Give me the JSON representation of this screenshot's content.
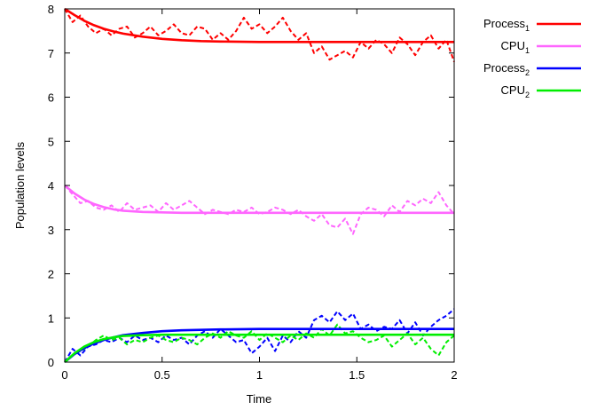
{
  "chart_data": {
    "type": "line",
    "xlabel": "Time",
    "ylabel": "Population levels",
    "xlim": [
      0,
      2
    ],
    "ylim": [
      0,
      8
    ],
    "x_ticks": [
      "0",
      "0.5",
      "1",
      "1.5",
      "2"
    ],
    "y_ticks": [
      "0",
      "1",
      "2",
      "3",
      "4",
      "5",
      "6",
      "7",
      "8"
    ],
    "grid": false,
    "legend_position": "top-right outside",
    "series": [
      {
        "name": "Process",
        "name_subscript": "1",
        "color": "#ff0000",
        "style": "solid",
        "x": [
          0,
          0.05,
          0.1,
          0.15,
          0.2,
          0.25,
          0.3,
          0.4,
          0.5,
          0.6,
          0.7,
          0.8,
          1.0,
          1.2,
          1.5,
          1.8,
          2.0
        ],
        "y": [
          8.0,
          7.86,
          7.73,
          7.63,
          7.55,
          7.49,
          7.44,
          7.37,
          7.32,
          7.29,
          7.27,
          7.26,
          7.25,
          7.25,
          7.25,
          7.25,
          7.25
        ]
      },
      {
        "name": "CPU",
        "name_subscript": "1",
        "color": "#ff66ff",
        "style": "solid",
        "x": [
          0,
          0.05,
          0.1,
          0.15,
          0.2,
          0.25,
          0.3,
          0.4,
          0.5,
          0.6,
          0.7,
          0.8,
          1.0,
          1.2,
          1.5,
          1.8,
          2.0
        ],
        "y": [
          4.0,
          3.82,
          3.68,
          3.58,
          3.51,
          3.46,
          3.43,
          3.4,
          3.39,
          3.38,
          3.38,
          3.38,
          3.38,
          3.38,
          3.38,
          3.38,
          3.38
        ]
      },
      {
        "name": "Process",
        "name_subscript": "2",
        "color": "#0000ff",
        "style": "solid",
        "x": [
          0,
          0.05,
          0.1,
          0.15,
          0.2,
          0.25,
          0.3,
          0.4,
          0.5,
          0.6,
          0.7,
          0.8,
          1.0,
          1.2,
          1.5,
          1.8,
          2.0
        ],
        "y": [
          0.0,
          0.18,
          0.32,
          0.42,
          0.5,
          0.56,
          0.61,
          0.66,
          0.7,
          0.72,
          0.73,
          0.74,
          0.75,
          0.75,
          0.75,
          0.75,
          0.75
        ]
      },
      {
        "name": "CPU",
        "name_subscript": "2",
        "color": "#00ee00",
        "style": "solid",
        "x": [
          0,
          0.05,
          0.1,
          0.15,
          0.2,
          0.25,
          0.3,
          0.4,
          0.5,
          0.6,
          0.7,
          0.8,
          1.0,
          1.2,
          1.5,
          1.8,
          2.0
        ],
        "y": [
          0.0,
          0.2,
          0.35,
          0.45,
          0.52,
          0.56,
          0.59,
          0.61,
          0.62,
          0.62,
          0.62,
          0.62,
          0.62,
          0.62,
          0.62,
          0.62,
          0.62
        ]
      },
      {
        "name": "",
        "color": "#ff0000",
        "style": "dashed",
        "x": [
          0,
          0.04,
          0.08,
          0.12,
          0.16,
          0.2,
          0.24,
          0.28,
          0.32,
          0.36,
          0.4,
          0.44,
          0.48,
          0.52,
          0.56,
          0.6,
          0.64,
          0.68,
          0.72,
          0.76,
          0.8,
          0.84,
          0.88,
          0.92,
          0.96,
          1.0,
          1.04,
          1.08,
          1.12,
          1.16,
          1.2,
          1.24,
          1.28,
          1.32,
          1.36,
          1.4,
          1.44,
          1.48,
          1.52,
          1.56,
          1.6,
          1.64,
          1.68,
          1.72,
          1.76,
          1.8,
          1.84,
          1.88,
          1.92,
          1.96,
          2.0
        ],
        "y": [
          8.0,
          7.7,
          7.85,
          7.6,
          7.45,
          7.55,
          7.4,
          7.55,
          7.6,
          7.35,
          7.45,
          7.6,
          7.4,
          7.5,
          7.65,
          7.45,
          7.4,
          7.6,
          7.55,
          7.3,
          7.45,
          7.3,
          7.5,
          7.8,
          7.55,
          7.65,
          7.45,
          7.6,
          7.8,
          7.5,
          7.3,
          7.45,
          7.0,
          7.15,
          6.85,
          6.95,
          7.05,
          6.9,
          7.25,
          7.1,
          7.3,
          7.2,
          7.0,
          7.35,
          7.2,
          6.95,
          7.25,
          7.4,
          7.1,
          7.3,
          6.8
        ]
      },
      {
        "name": "",
        "color": "#ff66ff",
        "style": "dashed",
        "x": [
          0,
          0.04,
          0.08,
          0.12,
          0.16,
          0.2,
          0.24,
          0.28,
          0.32,
          0.36,
          0.4,
          0.44,
          0.48,
          0.52,
          0.56,
          0.6,
          0.64,
          0.68,
          0.72,
          0.76,
          0.8,
          0.84,
          0.88,
          0.92,
          0.96,
          1.0,
          1.04,
          1.08,
          1.12,
          1.16,
          1.2,
          1.24,
          1.28,
          1.32,
          1.36,
          1.4,
          1.44,
          1.48,
          1.52,
          1.56,
          1.6,
          1.64,
          1.68,
          1.72,
          1.76,
          1.8,
          1.84,
          1.88,
          1.92,
          1.96,
          2.0
        ],
        "y": [
          4.0,
          3.8,
          3.6,
          3.65,
          3.5,
          3.45,
          3.55,
          3.4,
          3.6,
          3.45,
          3.5,
          3.55,
          3.4,
          3.6,
          3.45,
          3.55,
          3.65,
          3.5,
          3.35,
          3.45,
          3.4,
          3.35,
          3.45,
          3.4,
          3.5,
          3.35,
          3.4,
          3.5,
          3.45,
          3.35,
          3.45,
          3.3,
          3.2,
          3.35,
          3.1,
          3.05,
          3.25,
          2.9,
          3.35,
          3.5,
          3.45,
          3.3,
          3.55,
          3.4,
          3.65,
          3.55,
          3.7,
          3.6,
          3.85,
          3.55,
          3.35
        ]
      },
      {
        "name": "",
        "color": "#0000ff",
        "style": "dashed",
        "x": [
          0,
          0.04,
          0.08,
          0.12,
          0.16,
          0.2,
          0.24,
          0.28,
          0.32,
          0.36,
          0.4,
          0.44,
          0.48,
          0.52,
          0.56,
          0.6,
          0.64,
          0.68,
          0.72,
          0.76,
          0.8,
          0.84,
          0.88,
          0.92,
          0.96,
          1.0,
          1.04,
          1.08,
          1.12,
          1.16,
          1.2,
          1.24,
          1.28,
          1.32,
          1.36,
          1.4,
          1.44,
          1.48,
          1.52,
          1.56,
          1.6,
          1.64,
          1.68,
          1.72,
          1.76,
          1.8,
          1.84,
          1.88,
          1.92,
          1.96,
          2.0
        ],
        "y": [
          0.0,
          0.3,
          0.15,
          0.35,
          0.4,
          0.5,
          0.45,
          0.55,
          0.45,
          0.6,
          0.5,
          0.55,
          0.45,
          0.6,
          0.5,
          0.55,
          0.4,
          0.6,
          0.7,
          0.55,
          0.75,
          0.6,
          0.45,
          0.5,
          0.2,
          0.35,
          0.55,
          0.25,
          0.6,
          0.45,
          0.7,
          0.55,
          0.95,
          1.05,
          0.9,
          1.15,
          0.95,
          1.1,
          0.75,
          0.85,
          0.7,
          0.8,
          0.75,
          0.95,
          0.65,
          0.9,
          0.6,
          0.8,
          0.95,
          1.05,
          1.2
        ]
      },
      {
        "name": "",
        "color": "#00ee00",
        "style": "dashed",
        "x": [
          0,
          0.04,
          0.08,
          0.12,
          0.16,
          0.2,
          0.24,
          0.28,
          0.32,
          0.36,
          0.4,
          0.44,
          0.48,
          0.52,
          0.56,
          0.6,
          0.64,
          0.68,
          0.72,
          0.76,
          0.8,
          0.84,
          0.88,
          0.92,
          0.96,
          1.0,
          1.04,
          1.08,
          1.12,
          1.16,
          1.2,
          1.24,
          1.28,
          1.32,
          1.36,
          1.4,
          1.44,
          1.48,
          1.52,
          1.56,
          1.6,
          1.64,
          1.68,
          1.72,
          1.76,
          1.8,
          1.84,
          1.88,
          1.92,
          1.96,
          2.0
        ],
        "y": [
          0.0,
          0.15,
          0.25,
          0.35,
          0.5,
          0.6,
          0.5,
          0.55,
          0.4,
          0.5,
          0.45,
          0.55,
          0.6,
          0.5,
          0.45,
          0.55,
          0.5,
          0.4,
          0.55,
          0.65,
          0.55,
          0.7,
          0.6,
          0.55,
          0.7,
          0.5,
          0.65,
          0.55,
          0.45,
          0.6,
          0.5,
          0.65,
          0.55,
          0.75,
          0.6,
          0.85,
          0.65,
          0.7,
          0.55,
          0.45,
          0.5,
          0.6,
          0.35,
          0.5,
          0.65,
          0.4,
          0.55,
          0.3,
          0.15,
          0.45,
          0.6
        ]
      }
    ]
  }
}
